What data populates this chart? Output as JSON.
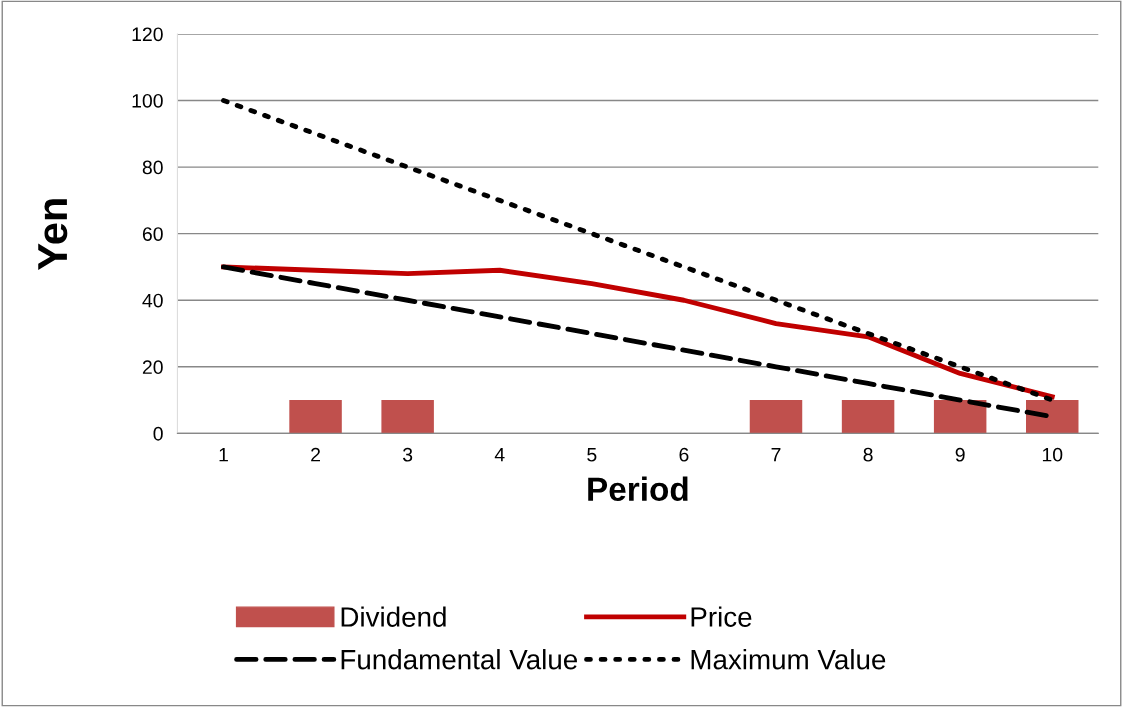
{
  "chart_data": {
    "type": "bar",
    "xlabel": "Period",
    "ylabel": "Yen",
    "categories": [
      "1",
      "2",
      "3",
      "4",
      "5",
      "6",
      "7",
      "8",
      "9",
      "10"
    ],
    "series": [
      {
        "name": "Dividend",
        "color": "#c0504d",
        "values": [
          0,
          10,
          10,
          0,
          0,
          0,
          10,
          10,
          10,
          10
        ]
      },
      {
        "name": "Price",
        "type": "line",
        "color": "#c00000",
        "line_style": "solid",
        "values": [
          50,
          49,
          48,
          49,
          45,
          40,
          33,
          29,
          18,
          11
        ]
      },
      {
        "name": "Fundamental Value",
        "type": "line",
        "color": "#000000",
        "line_style": "dashed",
        "values": [
          50,
          45,
          40,
          35,
          30,
          25,
          20,
          15,
          10,
          5
        ]
      },
      {
        "name": "Maximum Value",
        "type": "line",
        "color": "#000000",
        "line_style": "dotted",
        "values": [
          100,
          90,
          80,
          70,
          60,
          50,
          40,
          30,
          20,
          10
        ]
      }
    ],
    "ylim": [
      0,
      120
    ],
    "yticks": [
      0,
      20,
      40,
      60,
      80,
      100,
      120
    ],
    "grid": "y",
    "legend": "bottom"
  }
}
